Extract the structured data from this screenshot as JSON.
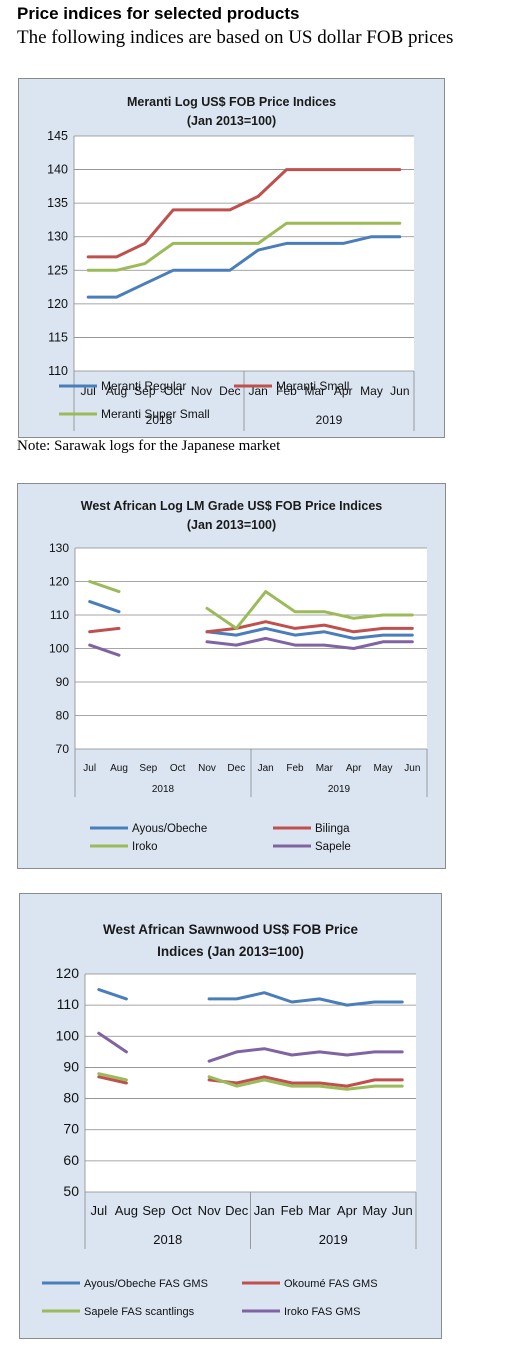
{
  "page": {
    "heading": "Price indices for selected products",
    "subheading": "The following indices are based on US dollar FOB prices",
    "note": "Note: Sarawak logs for the Japanese market"
  },
  "chart_data": [
    {
      "type": "line",
      "title_lines": [
        "Meranti Log US$ FOB Price Indices",
        "(Jan 2013=100)"
      ],
      "categories": [
        "Jul",
        "Aug",
        "Sep",
        "Oct",
        "Nov",
        "Dec",
        "Jan",
        "Feb",
        "Mar",
        "Apr",
        "May",
        "Jun"
      ],
      "groups": [
        {
          "label": "2018",
          "count": 6
        },
        {
          "label": "2019",
          "count": 6
        }
      ],
      "ylim": [
        110,
        145
      ],
      "yticks": [
        110,
        115,
        120,
        125,
        130,
        135,
        140,
        145
      ],
      "grid": true,
      "legend_position": "bottom",
      "legend_rows": [
        [
          0,
          1
        ],
        [
          2
        ]
      ],
      "series": [
        {
          "name": "Meranti Regular",
          "color": "#4a7ebb",
          "values": [
            121,
            121,
            123,
            125,
            125,
            125,
            128,
            129,
            129,
            129,
            130,
            130
          ]
        },
        {
          "name": "Meranti Small",
          "color": "#c0504d",
          "values": [
            127,
            127,
            129,
            134,
            134,
            134,
            136,
            140,
            140,
            140,
            140,
            140
          ]
        },
        {
          "name": "Meranti Super Small",
          "color": "#9bbb59",
          "values": [
            125,
            125,
            126,
            129,
            129,
            129,
            129,
            132,
            132,
            132,
            132,
            132
          ]
        }
      ]
    },
    {
      "type": "line",
      "title_lines": [
        "West African Log LM Grade US$ FOB Price Indices",
        "(Jan 2013=100)"
      ],
      "categories": [
        "Jul",
        "Aug",
        "Sep",
        "Oct",
        "Nov",
        "Dec",
        "Jan",
        "Feb",
        "Mar",
        "Apr",
        "May",
        "Jun"
      ],
      "groups": [
        {
          "label": "2018",
          "count": 6
        },
        {
          "label": "2019",
          "count": 6
        }
      ],
      "ylim": [
        70,
        130
      ],
      "yticks": [
        70,
        80,
        90,
        100,
        110,
        120,
        130
      ],
      "grid": true,
      "legend_position": "bottom",
      "legend_rows": [
        [
          0,
          1
        ],
        [
          2,
          3
        ]
      ],
      "series": [
        {
          "name": "Ayous/Obeche",
          "color": "#4a7ebb",
          "values": [
            114,
            111,
            null,
            null,
            105,
            104,
            106,
            104,
            105,
            103,
            104,
            104
          ]
        },
        {
          "name": "Bilinga",
          "color": "#c0504d",
          "values": [
            105,
            106,
            null,
            null,
            105,
            106,
            108,
            106,
            107,
            105,
            106,
            106
          ]
        },
        {
          "name": "Iroko",
          "color": "#9bbb59",
          "values": [
            120,
            117,
            null,
            null,
            112,
            106,
            117,
            111,
            111,
            109,
            110,
            110
          ]
        },
        {
          "name": "Sapele",
          "color": "#8064a2",
          "values": [
            101,
            98,
            null,
            null,
            102,
            101,
            103,
            101,
            101,
            100,
            102,
            102
          ]
        }
      ]
    },
    {
      "type": "line",
      "title_lines": [
        "West African Sawnwood US$ FOB Price",
        "Indices (Jan 2013=100)"
      ],
      "categories": [
        "Jul",
        "Aug",
        "Sep",
        "Oct",
        "Nov",
        "Dec",
        "Jan",
        "Feb",
        "Mar",
        "Apr",
        "May",
        "Jun"
      ],
      "groups": [
        {
          "label": "2018",
          "count": 6
        },
        {
          "label": "2019",
          "count": 6
        }
      ],
      "ylim": [
        50,
        120
      ],
      "yticks": [
        50,
        60,
        70,
        80,
        90,
        100,
        110,
        120
      ],
      "grid": true,
      "legend_position": "bottom",
      "legend_rows": [
        [
          0,
          1
        ],
        [
          2,
          3
        ]
      ],
      "series": [
        {
          "name": "Ayous/Obeche FAS GMS",
          "color": "#4a7ebb",
          "values": [
            115,
            112,
            null,
            null,
            112,
            112,
            114,
            111,
            112,
            110,
            111,
            111
          ]
        },
        {
          "name": "Okoumé FAS GMS",
          "color": "#c0504d",
          "values": [
            87,
            85,
            null,
            null,
            86,
            85,
            87,
            85,
            85,
            84,
            86,
            86
          ]
        },
        {
          "name": "Sapele FAS scantlings",
          "color": "#9bbb59",
          "values": [
            88,
            86,
            null,
            null,
            87,
            84,
            86,
            84,
            84,
            83,
            84,
            84
          ]
        },
        {
          "name": "Iroko FAS GMS",
          "color": "#8064a2",
          "values": [
            101,
            95,
            null,
            null,
            92,
            95,
            96,
            94,
            95,
            94,
            95,
            95
          ]
        }
      ]
    }
  ]
}
